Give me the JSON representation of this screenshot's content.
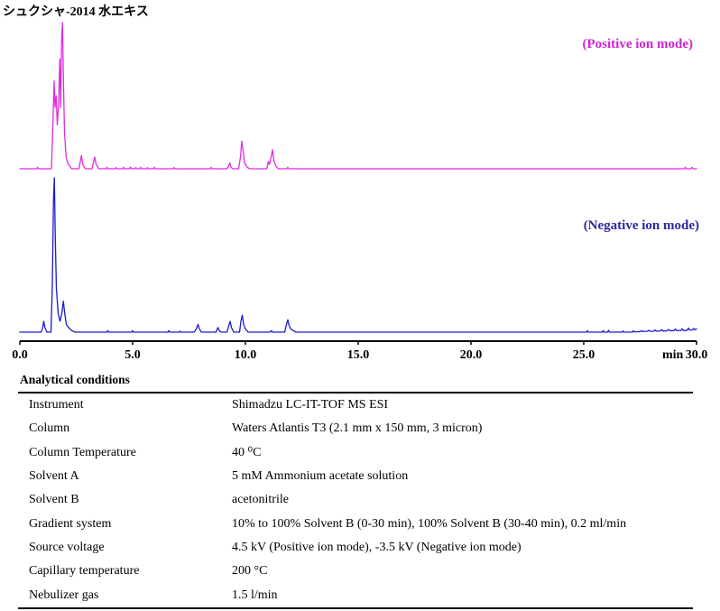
{
  "chart_data": {
    "type": "line",
    "title": "シュクシャ-2014 水エキス",
    "xlabel": "min",
    "ylabel": "",
    "xlim": [
      0,
      30
    ],
    "x_ticks": [
      "0.0",
      "5.0",
      "10.0",
      "15.0",
      "20.0",
      "25.0",
      "30.0"
    ],
    "grid": false,
    "legend": "top-right",
    "series": [
      {
        "name": "(Positive ion mode)",
        "color": "#e02ce0",
        "label_color": "#d024d0",
        "points": [
          [
            0,
            0
          ],
          [
            0.74,
            0
          ],
          [
            0.78,
            1
          ],
          [
            0.82,
            0
          ],
          [
            1.4,
            0
          ],
          [
            1.46,
            28
          ],
          [
            1.52,
            60
          ],
          [
            1.56,
            42
          ],
          [
            1.61,
            50
          ],
          [
            1.66,
            30
          ],
          [
            1.72,
            45
          ],
          [
            1.77,
            75
          ],
          [
            1.81,
            42
          ],
          [
            1.85,
            88
          ],
          [
            1.89,
            100
          ],
          [
            1.93,
            62
          ],
          [
            1.98,
            25
          ],
          [
            2.05,
            8
          ],
          [
            2.15,
            3
          ],
          [
            2.3,
            0
          ],
          [
            2.62,
            0
          ],
          [
            2.68,
            5
          ],
          [
            2.73,
            9
          ],
          [
            2.79,
            3
          ],
          [
            2.9,
            0
          ],
          [
            3.2,
            0
          ],
          [
            3.27,
            5
          ],
          [
            3.32,
            8
          ],
          [
            3.38,
            3
          ],
          [
            3.5,
            0
          ],
          [
            3.82,
            0
          ],
          [
            3.86,
            1
          ],
          [
            3.9,
            0
          ],
          [
            4.22,
            0
          ],
          [
            4.26,
            0.8
          ],
          [
            4.3,
            0
          ],
          [
            4.56,
            0
          ],
          [
            4.6,
            1
          ],
          [
            4.64,
            0
          ],
          [
            4.86,
            0
          ],
          [
            4.9,
            1.2
          ],
          [
            4.94,
            0
          ],
          [
            5.1,
            0
          ],
          [
            5.14,
            0.8
          ],
          [
            5.18,
            0
          ],
          [
            5.32,
            0
          ],
          [
            5.36,
            1
          ],
          [
            5.4,
            0
          ],
          [
            5.62,
            0
          ],
          [
            5.66,
            0.8
          ],
          [
            5.7,
            0
          ],
          [
            5.92,
            0
          ],
          [
            5.96,
            1
          ],
          [
            6.0,
            0
          ],
          [
            6.8,
            0
          ],
          [
            6.84,
            0.8
          ],
          [
            6.88,
            0
          ],
          [
            8.44,
            0
          ],
          [
            8.48,
            1
          ],
          [
            8.52,
            0
          ],
          [
            9.18,
            0
          ],
          [
            9.26,
            2
          ],
          [
            9.31,
            4
          ],
          [
            9.36,
            1
          ],
          [
            9.45,
            0
          ],
          [
            9.7,
            0
          ],
          [
            9.78,
            8
          ],
          [
            9.84,
            19
          ],
          [
            9.9,
            12
          ],
          [
            9.96,
            4
          ],
          [
            10.08,
            1
          ],
          [
            10.2,
            0
          ],
          [
            10.95,
            0
          ],
          [
            11.02,
            5
          ],
          [
            11.07,
            3
          ],
          [
            11.14,
            8
          ],
          [
            11.2,
            13
          ],
          [
            11.26,
            6
          ],
          [
            11.34,
            2
          ],
          [
            11.45,
            0
          ],
          [
            11.84,
            0
          ],
          [
            11.88,
            1
          ],
          [
            11.92,
            0
          ],
          [
            29.45,
            0
          ],
          [
            29.5,
            1
          ],
          [
            29.55,
            0
          ],
          [
            29.75,
            0
          ],
          [
            29.8,
            1
          ],
          [
            29.85,
            0
          ],
          [
            30,
            0
          ]
        ]
      },
      {
        "name": "(Negative ion mode)",
        "color": "#1a1ad0",
        "label_color": "#2a2aa0",
        "points": [
          [
            0,
            0
          ],
          [
            0.95,
            0
          ],
          [
            1.01,
            3
          ],
          [
            1.06,
            7
          ],
          [
            1.11,
            3
          ],
          [
            1.2,
            0
          ],
          [
            1.38,
            0
          ],
          [
            1.44,
            30
          ],
          [
            1.49,
            85
          ],
          [
            1.53,
            100
          ],
          [
            1.57,
            62
          ],
          [
            1.62,
            28
          ],
          [
            1.7,
            12
          ],
          [
            1.78,
            7
          ],
          [
            1.86,
            12
          ],
          [
            1.93,
            20
          ],
          [
            1.99,
            12
          ],
          [
            2.06,
            5
          ],
          [
            2.16,
            3
          ],
          [
            2.3,
            1
          ],
          [
            2.45,
            0
          ],
          [
            3.86,
            0
          ],
          [
            3.9,
            1
          ],
          [
            3.94,
            0
          ],
          [
            4.96,
            0
          ],
          [
            5.0,
            1
          ],
          [
            5.04,
            0
          ],
          [
            6.56,
            0
          ],
          [
            6.6,
            1
          ],
          [
            6.64,
            0
          ],
          [
            7.06,
            0
          ],
          [
            7.1,
            0.6
          ],
          [
            7.14,
            0
          ],
          [
            7.72,
            0
          ],
          [
            7.82,
            2
          ],
          [
            7.9,
            5
          ],
          [
            7.96,
            2
          ],
          [
            8.05,
            0
          ],
          [
            8.7,
            0
          ],
          [
            8.78,
            3
          ],
          [
            8.84,
            1
          ],
          [
            8.92,
            0
          ],
          [
            9.18,
            0
          ],
          [
            9.26,
            4
          ],
          [
            9.32,
            7
          ],
          [
            9.38,
            3
          ],
          [
            9.48,
            0
          ],
          [
            9.74,
            0
          ],
          [
            9.8,
            7
          ],
          [
            9.86,
            11
          ],
          [
            9.92,
            5
          ],
          [
            10.0,
            2
          ],
          [
            10.12,
            0
          ],
          [
            11.1,
            0
          ],
          [
            11.15,
            1
          ],
          [
            11.2,
            0
          ],
          [
            11.74,
            0
          ],
          [
            11.82,
            5
          ],
          [
            11.88,
            8
          ],
          [
            11.94,
            4
          ],
          [
            12.02,
            2
          ],
          [
            12.12,
            1
          ],
          [
            12.25,
            0
          ],
          [
            25.12,
            0
          ],
          [
            25.16,
            1
          ],
          [
            25.2,
            0
          ],
          [
            25.82,
            0
          ],
          [
            25.86,
            1
          ],
          [
            25.9,
            0
          ],
          [
            26.06,
            0
          ],
          [
            26.1,
            1.2
          ],
          [
            26.14,
            0
          ],
          [
            26.7,
            0
          ],
          [
            26.74,
            0.8
          ],
          [
            26.78,
            0
          ],
          [
            27.16,
            0
          ],
          [
            27.2,
            1
          ],
          [
            27.24,
            0.2
          ],
          [
            27.5,
            0.3
          ],
          [
            27.56,
            1
          ],
          [
            27.62,
            0.4
          ],
          [
            27.82,
            0.5
          ],
          [
            27.88,
            1.2
          ],
          [
            27.94,
            0.5
          ],
          [
            28.1,
            0.6
          ],
          [
            28.16,
            1.4
          ],
          [
            28.22,
            0.6
          ],
          [
            28.4,
            0.8
          ],
          [
            28.46,
            1.6
          ],
          [
            28.52,
            0.7
          ],
          [
            28.7,
            0.9
          ],
          [
            28.76,
            1.8
          ],
          [
            28.82,
            0.9
          ],
          [
            29.0,
            1
          ],
          [
            29.06,
            2
          ],
          [
            29.12,
            1
          ],
          [
            29.3,
            1.1
          ],
          [
            29.36,
            2.2
          ],
          [
            29.42,
            1
          ],
          [
            29.58,
            1.2
          ],
          [
            29.64,
            2.6
          ],
          [
            29.7,
            1.3
          ],
          [
            29.82,
            1.4
          ],
          [
            29.88,
            2.4
          ],
          [
            29.94,
            1.5
          ],
          [
            30,
            2
          ]
        ]
      }
    ]
  },
  "conditions": {
    "heading": "Analytical conditions",
    "rows": [
      {
        "label": "Instrument",
        "value": "Shimadzu LC-IT-TOF MS ESI"
      },
      {
        "label": "Column",
        "value": "Waters Atlantis T3 (2.1 mm x 150 mm, 3 micron)"
      },
      {
        "label": "Column Temperature",
        "value": "40 ⁰C"
      },
      {
        "label": "Solvent A",
        "value": "5 mM Ammonium acetate solution"
      },
      {
        "label": "Solvent B",
        "value": "acetonitrile"
      },
      {
        "label": "Gradient system",
        "value": "10% to 100% Solvent B (0-30 min), 100% Solvent B (30-40 min), 0.2 ml/min"
      },
      {
        "label": "Source voltage",
        "value": "4.5 kV (Positive ion mode), -3.5 kV (Negative ion mode)"
      },
      {
        "label": "Capillary temperature",
        "value": "200 °C"
      },
      {
        "label": "Nebulizer gas",
        "value": "1.5 l/min"
      }
    ]
  }
}
